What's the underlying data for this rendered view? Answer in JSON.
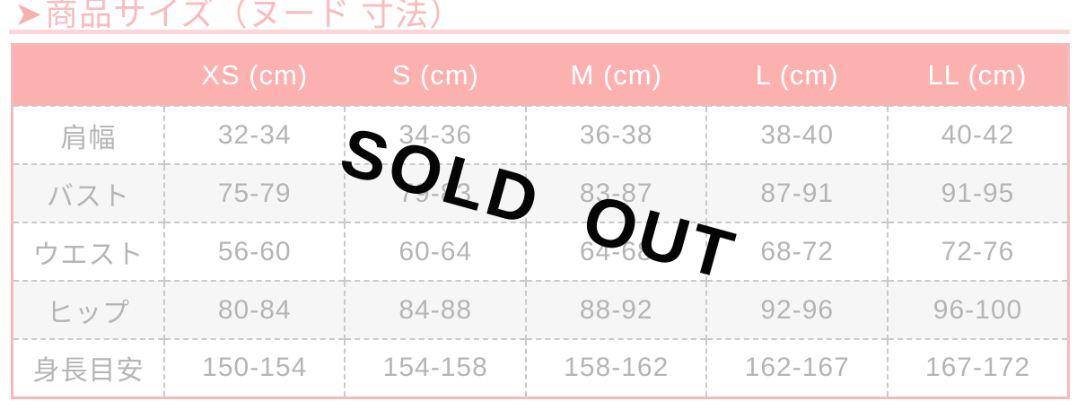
{
  "header": {
    "arrow": "➤",
    "title": "商品サイズ（ヌード 寸法）"
  },
  "overlay": {
    "sold_out": "SOLD OUT"
  },
  "size_table": {
    "columns": [
      "",
      "XS (cm)",
      "S (cm)",
      "M (cm)",
      "L (cm)",
      "LL (cm)"
    ],
    "rows": [
      {
        "label": "肩幅",
        "values": [
          "32-34",
          "34-36",
          "36-38",
          "38-40",
          "40-42"
        ]
      },
      {
        "label": "バスト",
        "values": [
          "75-79",
          "79-83",
          "83-87",
          "87-91",
          "91-95"
        ]
      },
      {
        "label": "ウエスト",
        "values": [
          "56-60",
          "60-64",
          "64-68",
          "68-72",
          "72-76"
        ]
      },
      {
        "label": "ヒップ",
        "values": [
          "80-84",
          "84-88",
          "88-92",
          "92-96",
          "96-100"
        ]
      },
      {
        "label": "身長目安",
        "values": [
          "150-154",
          "154-158",
          "158-162",
          "162-167",
          "167-172"
        ]
      }
    ]
  },
  "colors": {
    "header_background": "#fcb1b1",
    "header_text": "#ffffff",
    "title_pink": "#f8bcbc",
    "title_rule_pink": "#fbd7d7",
    "table_border_pink": "#f4baba",
    "cell_text_gray": "#b5b5b5",
    "dashed_border_gray": "#c9c9c9",
    "zebra_row_gray": "#f6f6f6",
    "sold_out_black": "#050505"
  }
}
